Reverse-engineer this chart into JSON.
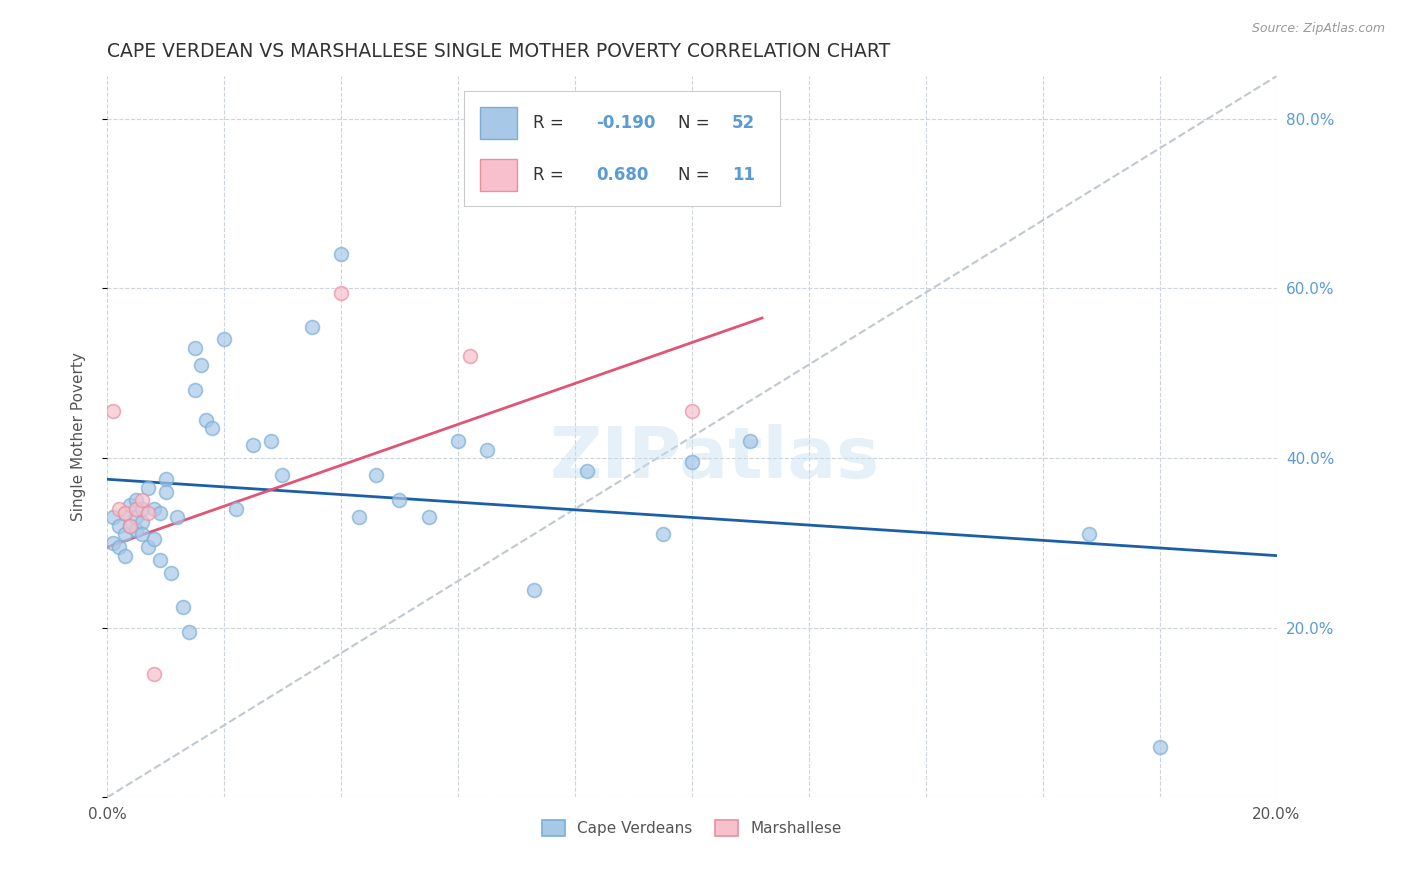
{
  "title": "CAPE VERDEAN VS MARSHALLESE SINGLE MOTHER POVERTY CORRELATION CHART",
  "source": "Source: ZipAtlas.com",
  "ylabel": "Single Mother Poverty",
  "xlim": [
    0.0,
    0.2
  ],
  "ylim": [
    0.0,
    0.85
  ],
  "ytick_vals": [
    0.0,
    0.2,
    0.4,
    0.6,
    0.8
  ],
  "xtick_vals": [
    0.0,
    0.02,
    0.04,
    0.06,
    0.08,
    0.1,
    0.12,
    0.14,
    0.16,
    0.18,
    0.2
  ],
  "grid_color": "#c8d0d8",
  "watermark": "ZIPatlas",
  "blue_fill": "#a8c8e8",
  "blue_edge": "#7aaed6",
  "pink_fill": "#f8c0cc",
  "pink_edge": "#e890a0",
  "blue_line_color": "#1a5fa8",
  "pink_line_color": "#e05575",
  "diagonal_color": "#c0c8d0",
  "legend_blue_label": "Cape Verdeans",
  "legend_pink_label": "Marshallese",
  "R_blue": -0.19,
  "N_blue": 52,
  "R_pink": 0.68,
  "N_pink": 11,
  "cape_verdean_x": [
    0.001,
    0.001,
    0.002,
    0.002,
    0.003,
    0.003,
    0.003,
    0.004,
    0.004,
    0.005,
    0.005,
    0.005,
    0.006,
    0.006,
    0.006,
    0.007,
    0.007,
    0.008,
    0.008,
    0.009,
    0.009,
    0.01,
    0.01,
    0.011,
    0.012,
    0.013,
    0.014,
    0.015,
    0.015,
    0.016,
    0.017,
    0.018,
    0.02,
    0.022,
    0.025,
    0.028,
    0.03,
    0.035,
    0.04,
    0.043,
    0.046,
    0.05,
    0.055,
    0.06,
    0.065,
    0.073,
    0.082,
    0.095,
    0.1,
    0.11,
    0.168,
    0.18
  ],
  "cape_verdean_y": [
    0.33,
    0.3,
    0.32,
    0.295,
    0.335,
    0.31,
    0.285,
    0.345,
    0.32,
    0.35,
    0.33,
    0.315,
    0.325,
    0.31,
    0.34,
    0.365,
    0.295,
    0.305,
    0.34,
    0.28,
    0.335,
    0.375,
    0.36,
    0.265,
    0.33,
    0.225,
    0.195,
    0.48,
    0.53,
    0.51,
    0.445,
    0.435,
    0.54,
    0.34,
    0.415,
    0.42,
    0.38,
    0.555,
    0.64,
    0.33,
    0.38,
    0.35,
    0.33,
    0.42,
    0.41,
    0.245,
    0.385,
    0.31,
    0.395,
    0.42,
    0.31,
    0.06
  ],
  "marshallese_x": [
    0.001,
    0.002,
    0.003,
    0.004,
    0.005,
    0.006,
    0.007,
    0.008,
    0.04,
    0.062,
    0.1
  ],
  "marshallese_y": [
    0.455,
    0.34,
    0.335,
    0.32,
    0.34,
    0.35,
    0.335,
    0.145,
    0.595,
    0.52,
    0.455
  ],
  "blue_line_x": [
    0.0,
    0.2
  ],
  "blue_line_y": [
    0.375,
    0.285
  ],
  "pink_line_x": [
    0.0,
    0.112
  ],
  "pink_line_y": [
    0.295,
    0.565
  ],
  "diagonal_line_x": [
    0.0,
    0.2
  ],
  "diagonal_line_y": [
    0.0,
    0.85
  ],
  "background_color": "#ffffff",
  "title_color": "#333333",
  "title_fontsize": 13.5,
  "axis_label_color": "#555555",
  "right_axis_label_color": "#5b9bd5",
  "marker_size": 100,
  "marker_alpha": 0.7
}
